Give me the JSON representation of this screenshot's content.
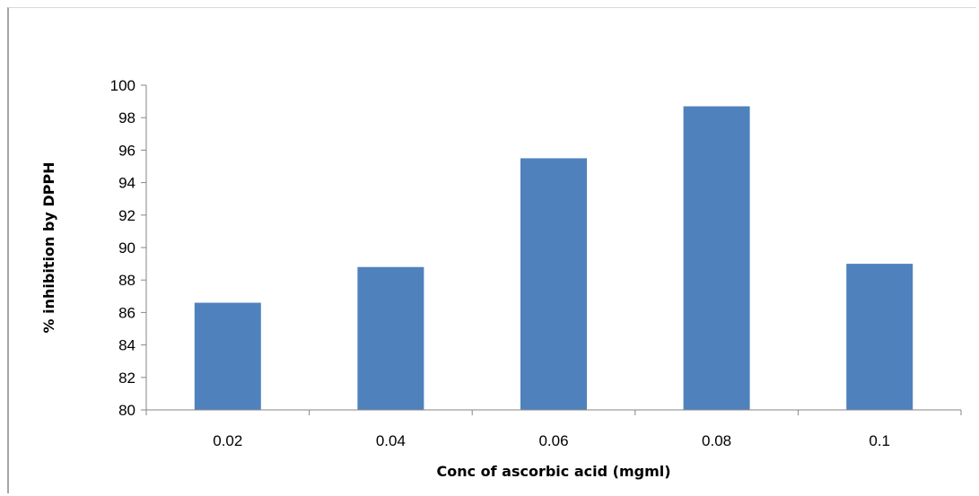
{
  "chart_data": {
    "type": "bar",
    "categories": [
      "0.02",
      "0.04",
      "0.06",
      "0.08",
      "0.1"
    ],
    "values": [
      86.6,
      88.8,
      95.5,
      98.7,
      89.0
    ],
    "xlabel": "Conc of ascorbic acid (mgml)",
    "ylabel": "% inhibition by DPPH",
    "ylim": [
      80,
      100
    ],
    "yticks": [
      80,
      82,
      84,
      86,
      88,
      90,
      92,
      94,
      96,
      98,
      100
    ],
    "grid": false,
    "bar_color": "#4f81bd"
  }
}
